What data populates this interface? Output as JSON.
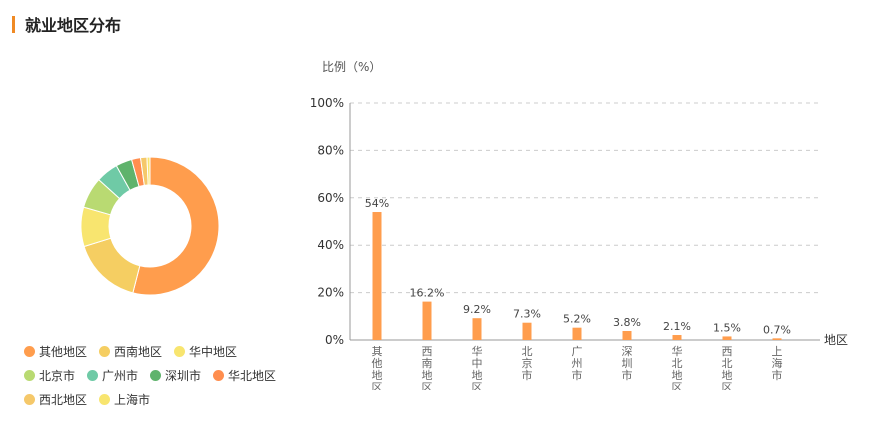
{
  "title": "就业地区分布",
  "colors": {
    "accent": "#f08a24",
    "bar": "#ff9d4d",
    "grid": "#cccccc",
    "axis": "#999999"
  },
  "legend": [
    {
      "label": "其他地区",
      "color": "#ff9d4d"
    },
    {
      "label": "西南地区",
      "color": "#f5ce62"
    },
    {
      "label": "华中地区",
      "color": "#f8e56f"
    },
    {
      "label": "北京市",
      "color": "#b9da72"
    },
    {
      "label": "广州市",
      "color": "#6fcaa6"
    },
    {
      "label": "深圳市",
      "color": "#5fb36c"
    },
    {
      "label": "华北地区",
      "color": "#ff8e4f"
    },
    {
      "label": "西北地区",
      "color": "#f5c86a"
    },
    {
      "label": "上海市",
      "color": "#f8e56f"
    }
  ],
  "chart_data": [
    {
      "type": "pie",
      "variant": "donut",
      "labels": [
        "其他地区",
        "西南地区",
        "华中地区",
        "北京市",
        "广州市",
        "深圳市",
        "华北地区",
        "西北地区",
        "上海市"
      ],
      "values": [
        54,
        16.2,
        9.2,
        7.3,
        5.2,
        3.8,
        2.1,
        1.5,
        0.7
      ],
      "colors": [
        "#ff9d4d",
        "#f5ce62",
        "#f8e56f",
        "#b9da72",
        "#6fcaa6",
        "#5fb36c",
        "#ff8e4f",
        "#f5c86a",
        "#f8e56f"
      ],
      "legend_position": "bottom-left"
    },
    {
      "type": "bar",
      "ylabel": "比例（%）",
      "xlabel": "地区",
      "categories": [
        "其他地区",
        "西南地区",
        "华中地区",
        "北京市",
        "广州市",
        "深圳市",
        "华北地区",
        "西北地区",
        "上海市"
      ],
      "values": [
        54,
        16.2,
        9.2,
        7.3,
        5.2,
        3.8,
        2.1,
        1.5,
        0.7
      ],
      "data_labels": [
        "54%",
        "16.2%",
        "9.2%",
        "7.3%",
        "5.2%",
        "3.8%",
        "2.1%",
        "1.5%",
        "0.7%"
      ],
      "yticks": [
        "0%",
        "20%",
        "40%",
        "60%",
        "80%",
        "100%"
      ],
      "ylim": [
        0,
        100
      ],
      "grid": true
    }
  ]
}
